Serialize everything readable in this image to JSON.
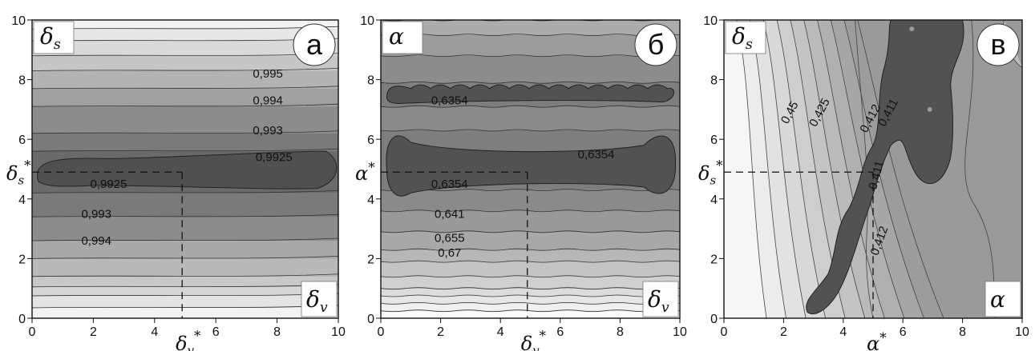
{
  "chart_data": [
    {
      "type": "contour",
      "panel_letter": "а",
      "xlim": [
        0,
        10
      ],
      "ylim": [
        0,
        10
      ],
      "x_ticks": [
        "0",
        "2",
        "4",
        "6",
        "8",
        "10"
      ],
      "y_ticks": [
        "0",
        "2",
        "4",
        "6",
        "8",
        "10"
      ],
      "corner_label_y": "δ_s",
      "corner_label_x": "δ_v",
      "optimum": {
        "x": 4.9,
        "y": 4.9,
        "x_label": "δ_v*",
        "y_label": "δ_s*"
      },
      "contour_labels": [
        {
          "text": "0,995",
          "x": 7.7,
          "y": 8.2
        },
        {
          "text": "0,994",
          "x": 7.7,
          "y": 7.3
        },
        {
          "text": "0,993",
          "x": 7.7,
          "y": 6.3
        },
        {
          "text": "0,9925",
          "x": 7.9,
          "y": 5.4
        },
        {
          "text": "0,9925",
          "x": 2.5,
          "y": 4.5
        },
        {
          "text": "0,993",
          "x": 2.1,
          "y": 3.5
        },
        {
          "text": "0,994",
          "x": 2.1,
          "y": 2.6
        }
      ]
    },
    {
      "type": "contour",
      "panel_letter": "б",
      "xlim": [
        0,
        10
      ],
      "ylim": [
        0,
        10
      ],
      "x_ticks": [
        "0",
        "2",
        "4",
        "6",
        "8",
        "10"
      ],
      "y_ticks": [
        "0",
        "2",
        "4",
        "6",
        "8",
        "10"
      ],
      "corner_label_y": "α",
      "corner_label_x": "δ_v",
      "optimum": {
        "x": 4.9,
        "y": 4.9,
        "x_label": "δ_v*",
        "y_label": "α*"
      },
      "contour_labels": [
        {
          "text": "0,6354",
          "x": 2.3,
          "y": 7.3
        },
        {
          "text": "0,6354",
          "x": 7.2,
          "y": 5.5
        },
        {
          "text": "0,6354",
          "x": 2.3,
          "y": 4.5
        },
        {
          "text": "0,641",
          "x": 2.3,
          "y": 3.5
        },
        {
          "text": "0,655",
          "x": 2.3,
          "y": 2.7
        },
        {
          "text": "0,67",
          "x": 2.3,
          "y": 2.2
        }
      ]
    },
    {
      "type": "contour",
      "panel_letter": "в",
      "xlim": [
        0,
        10
      ],
      "ylim": [
        0,
        10
      ],
      "x_ticks": [
        "0",
        "2",
        "4",
        "6",
        "8",
        "10"
      ],
      "y_ticks": [
        "0",
        "2",
        "4",
        "6",
        "8",
        "10"
      ],
      "corner_label_y": "δ_s",
      "corner_label_x": "α",
      "optimum": {
        "x": 5.0,
        "y": 4.9,
        "x_label": "α*",
        "y_label": "δ_s*"
      },
      "contour_labels": [
        {
          "text": "0,45",
          "x": 2.2,
          "y": 6.9
        },
        {
          "text": "0,425",
          "x": 3.2,
          "y": 6.9
        },
        {
          "text": "0,412",
          "x": 4.9,
          "y": 6.7
        },
        {
          "text": "0,411",
          "x": 5.5,
          "y": 6.9
        },
        {
          "text": "0,411",
          "x": 5.1,
          "y": 4.8
        },
        {
          "text": "0,412",
          "x": 5.2,
          "y": 2.6
        }
      ]
    }
  ]
}
